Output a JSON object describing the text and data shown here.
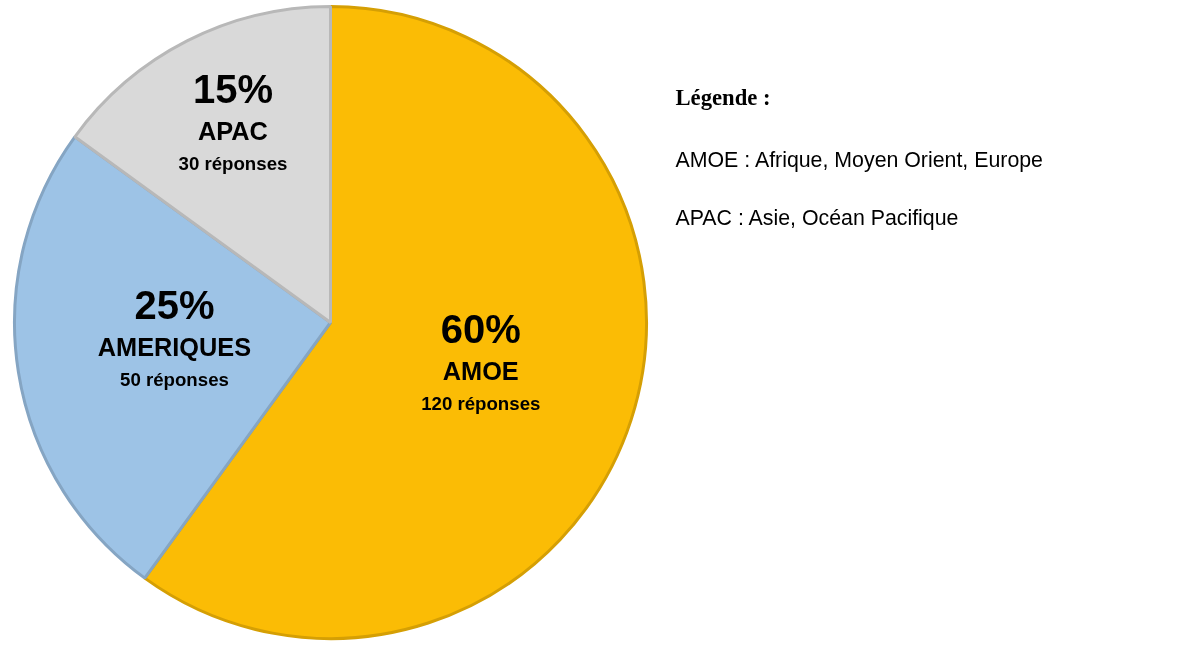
{
  "chart_data": {
    "type": "pie",
    "categories": [
      "AMOE",
      "AMERIQUES",
      "APAC"
    ],
    "values": [
      60,
      25,
      15
    ],
    "colors": [
      "#fbbc05",
      "#9dc3e6",
      "#d9d9d9"
    ],
    "value_labels": [
      "60%",
      "25%",
      "15%"
    ],
    "legend": false,
    "annotations": [
      "Légende :",
      "AMOE : Afrique, Moyen Orient, Europe",
      "APAC : Asie, Océan Pacifique",
      {
        "text": "120 réponses",
        "x": "AMOE"
      },
      {
        "text": "50 réponses",
        "x": "AMERIQUES"
      },
      {
        "text": "30 réponses",
        "x": "APAC"
      }
    ]
  }
}
